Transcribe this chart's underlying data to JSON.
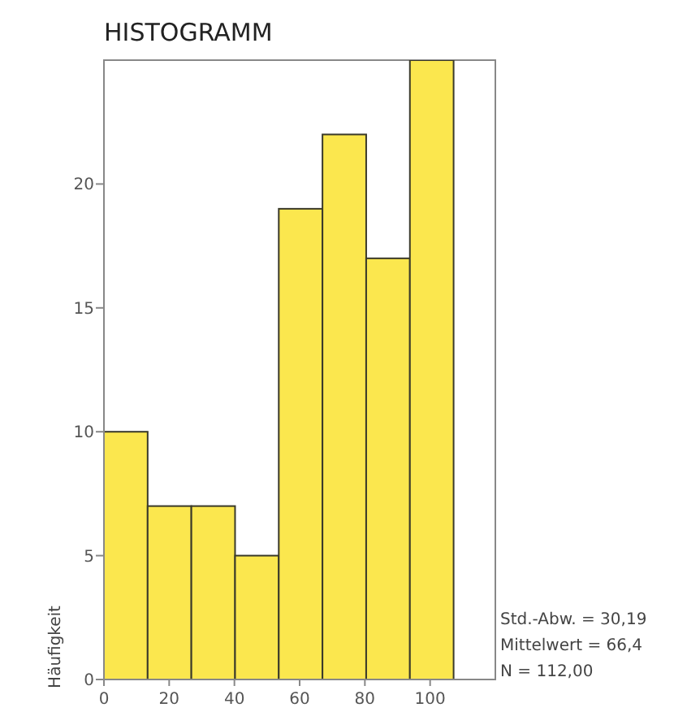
{
  "chart_data": {
    "type": "histogram",
    "title": "HISTOGRAMM",
    "ylabel": "Häufigkeit",
    "bins": [
      0,
      13.4,
      26.8,
      40.2,
      53.6,
      67,
      80.4,
      93.8,
      107.2
    ],
    "values": [
      10,
      7,
      7,
      5,
      19,
      22,
      17,
      25
    ],
    "color": "#fbe74e",
    "xlim": [
      0,
      120
    ],
    "xticks": [
      0,
      20,
      40,
      60,
      80,
      100
    ],
    "ylim": [
      0,
      25
    ],
    "yticks": [
      0,
      5,
      10,
      15,
      20
    ],
    "grid": false,
    "annotations": [
      "Std.-Abw. = 30,19",
      "Mittelwert = 66,4",
      "N = 112,00"
    ]
  }
}
